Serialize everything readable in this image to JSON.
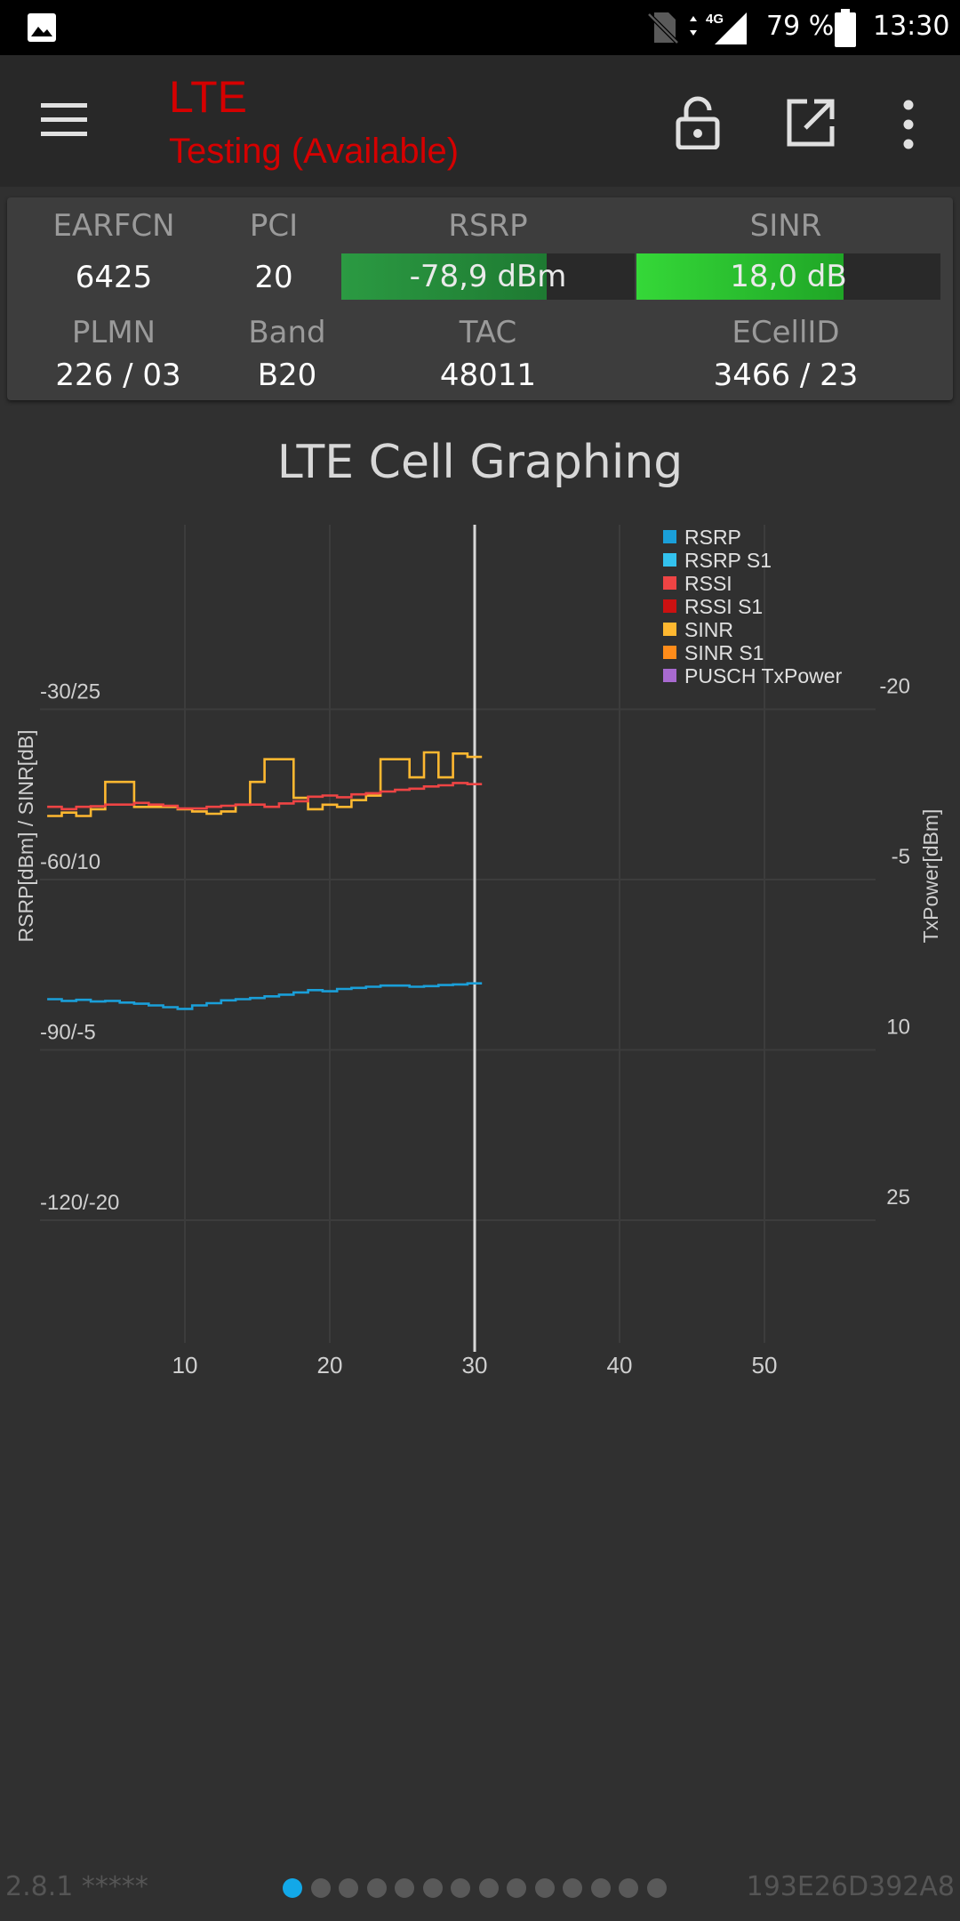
{
  "status_bar": {
    "battery_percent": "79 %",
    "time": "13:30",
    "network_type": "4G",
    "icons": [
      "gallery-icon",
      "no-sim-icon",
      "signal-icon",
      "battery-icon"
    ]
  },
  "app_bar": {
    "title": "LTE",
    "subtitle": "Testing (Available)",
    "title_color": "#d50000",
    "icons": [
      "menu-icon",
      "lock-icon",
      "open-external-icon",
      "more-vert-icon"
    ]
  },
  "cell_info": {
    "earfcn_label": "EARFCN",
    "earfcn_value": "6425",
    "pci_label": "PCI",
    "pci_value": "20",
    "rsrp_label": "RSRP",
    "rsrp_value": "-78,9 dBm",
    "rsrp_fill": 0.7,
    "sinr_label": "SINR",
    "sinr_value": "18,0 dB",
    "sinr_fill": 0.68,
    "plmn_label": "PLMN",
    "plmn_value": "226 / 03",
    "band_label": "Band",
    "band_value": "B20",
    "tac_label": "TAC",
    "tac_value": "48011",
    "ecellid_label": "ECellID",
    "ecellid_value": "3466 / 23"
  },
  "chart_title": "LTE Cell Graphing",
  "chart_data": {
    "type": "line",
    "title": "LTE Cell Graphing",
    "ylabel": "RSRP[dBm] / SINR[dB]",
    "y2label": "TxPower[dBm]",
    "xlim": [
      0,
      60
    ],
    "xticks": [
      "10",
      "20",
      "30",
      "40",
      "50"
    ],
    "yticks_left": [
      "-30/25",
      "-60/10",
      "-90/-5",
      "-120/-20"
    ],
    "yticks_right": [
      "-20",
      "-5",
      "10",
      "25"
    ],
    "cursor_x": 30,
    "legend": [
      "RSRP",
      "RSRP S1",
      "RSSI",
      "RSSI S1",
      "SINR",
      "SINR S1",
      "PUSCH TxPower"
    ],
    "legend_colors": [
      "#1a9fd9",
      "#33c2ee",
      "#ee4444",
      "#cc1111",
      "#ffb830",
      "#ff8c1a",
      "#a86ad0"
    ],
    "series": [
      {
        "name": "SINR",
        "color": "#ffb830",
        "axis": "sinr",
        "x": [
          1,
          2,
          3,
          4,
          5,
          6,
          7,
          8,
          9,
          10,
          11,
          12,
          13,
          14,
          15,
          16,
          17,
          18,
          19,
          20,
          21,
          22,
          23,
          24,
          25,
          26,
          27,
          28,
          29,
          30
        ],
        "values": [
          15.6,
          15.9,
          15.6,
          16.2,
          18.6,
          18.6,
          16.4,
          16.4,
          16.4,
          16.2,
          16.0,
          15.8,
          16.0,
          16.6,
          18.6,
          20.6,
          20.6,
          17.2,
          16.2,
          16.6,
          16.4,
          17.0,
          17.4,
          20.6,
          20.6,
          19.0,
          21.2,
          19.0,
          21.1,
          20.8
        ]
      },
      {
        "name": "RSSI",
        "color": "#ee4444",
        "axis": "rsrp",
        "x": [
          1,
          2,
          3,
          4,
          5,
          6,
          7,
          8,
          9,
          10,
          11,
          12,
          13,
          14,
          15,
          16,
          17,
          18,
          19,
          20,
          21,
          22,
          23,
          24,
          25,
          26,
          27,
          28,
          29,
          30
        ],
        "values": [
          -47.2,
          -47.6,
          -47.2,
          -47.1,
          -46.8,
          -46.8,
          -46.5,
          -46.8,
          -47.0,
          -47.5,
          -47.5,
          -47.2,
          -47.0,
          -46.8,
          -46.8,
          -47.2,
          -46.6,
          -46.2,
          -45.4,
          -45.2,
          -45.5,
          -45.0,
          -44.8,
          -44.5,
          -44.2,
          -44.0,
          -43.6,
          -43.4,
          -43.0,
          -43.2
        ]
      },
      {
        "name": "RSRP",
        "color": "#1a9fd9",
        "axis": "rsrp",
        "x": [
          1,
          2,
          3,
          4,
          5,
          6,
          7,
          8,
          9,
          10,
          11,
          12,
          13,
          14,
          15,
          16,
          17,
          18,
          19,
          20,
          21,
          22,
          23,
          24,
          25,
          26,
          27,
          28,
          29,
          30
        ],
        "values": [
          -81.1,
          -81.4,
          -81.2,
          -81.5,
          -81.4,
          -81.7,
          -81.9,
          -82.2,
          -82.5,
          -82.8,
          -82.2,
          -81.8,
          -81.3,
          -81.1,
          -80.9,
          -80.6,
          -80.3,
          -79.9,
          -79.5,
          -79.7,
          -79.3,
          -79.1,
          -78.9,
          -78.7,
          -78.7,
          -78.9,
          -78.8,
          -78.6,
          -78.5,
          -78.3
        ]
      }
    ]
  },
  "footer": {
    "version": "2.8.1 *****",
    "device_id": "193E26D392A8",
    "page_count": 14,
    "active_page": 0
  }
}
